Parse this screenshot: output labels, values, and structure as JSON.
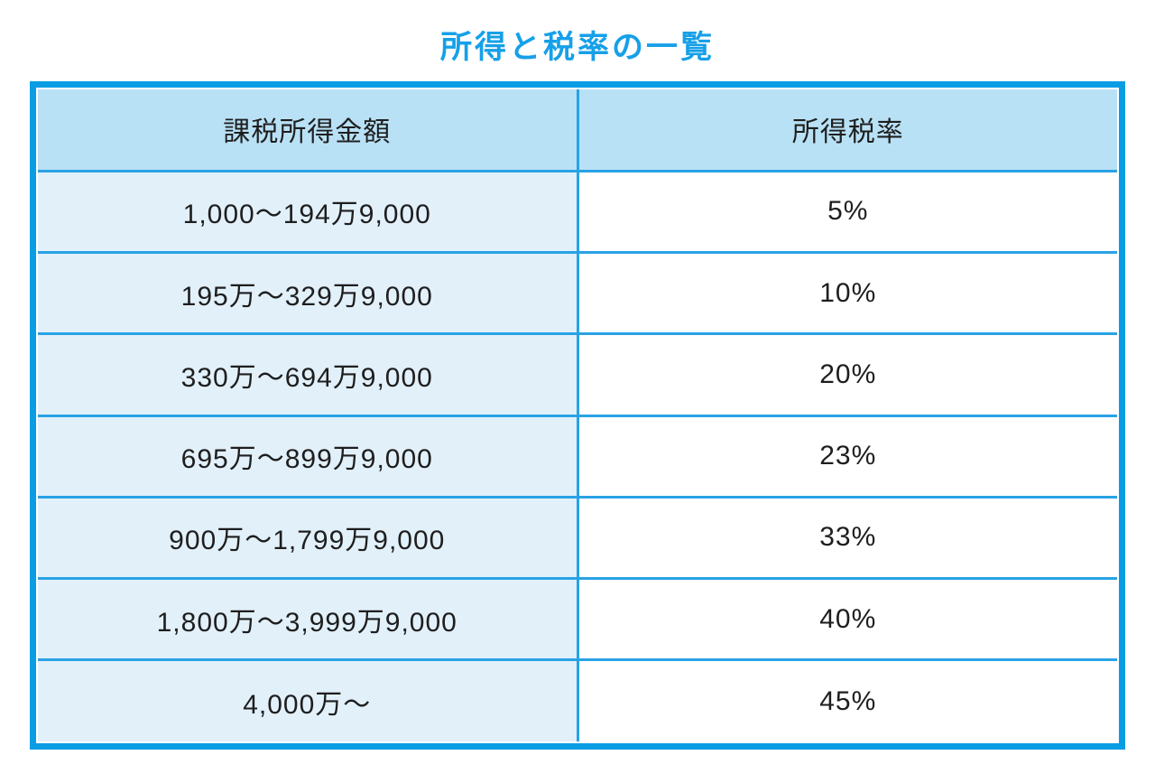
{
  "page": {
    "title": "所得と税率の一覧"
  },
  "colors": {
    "title_blue": "#16a0e8",
    "outer_border": "#0a9de4",
    "grid_line": "#29a2e5",
    "header_bg": "#b9e1f6",
    "income_cell_bg": "#e2f0fa",
    "rate_cell_bg": "#ffffff",
    "text": "#1e1e1e"
  },
  "chart_data": {
    "type": "table",
    "title": "所得と税率の一覧",
    "columns": [
      "課税所得金額",
      "所得税率"
    ],
    "rows": [
      {
        "income": "1,000〜194万9,000",
        "rate": "5%"
      },
      {
        "income": "195万〜329万9,000",
        "rate": "10%"
      },
      {
        "income": "330万〜694万9,000",
        "rate": "20%"
      },
      {
        "income": "695万〜899万9,000",
        "rate": "23%"
      },
      {
        "income": "900万〜1,799万9,000",
        "rate": "33%"
      },
      {
        "income": "1,800万〜3,999万9,000",
        "rate": "40%"
      },
      {
        "income": "4,000万〜",
        "rate": "45%"
      }
    ]
  }
}
